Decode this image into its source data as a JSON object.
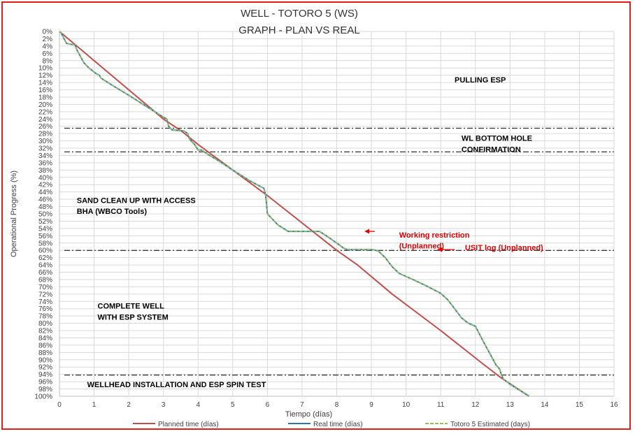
{
  "chart_data": {
    "type": "line",
    "title": "WELL -  TOTORO 5 (WS)",
    "subtitle": "GRAPH  - PLAN VS REAL",
    "xlabel": "Tiempo (días)",
    "ylabel": "Operational Progress (%)",
    "xlim": [
      0,
      16
    ],
    "ylim": [
      0,
      100
    ],
    "y_reversed": true,
    "x_ticks": [
      0,
      1,
      2,
      3,
      4,
      5,
      6,
      7,
      8,
      9,
      10,
      11,
      12,
      13,
      14,
      15,
      16
    ],
    "y_ticks": [
      0,
      2,
      4,
      6,
      8,
      10,
      12,
      14,
      16,
      18,
      20,
      22,
      24,
      26,
      28,
      30,
      32,
      34,
      36,
      38,
      40,
      42,
      44,
      46,
      48,
      50,
      52,
      54,
      56,
      58,
      60,
      62,
      64,
      66,
      68,
      70,
      72,
      74,
      76,
      78,
      80,
      82,
      84,
      86,
      88,
      90,
      92,
      94,
      96,
      98,
      100
    ],
    "y_tick_suffix": "%",
    "grid": true,
    "legend_position": "bottom",
    "series": [
      {
        "name": "Planned time (días)",
        "color": "#c0504d",
        "style": "solid",
        "x": [
          0,
          1.5,
          3.0,
          3.55,
          4.0,
          6.0,
          8.0,
          8.6,
          9.6,
          11.0,
          12.2,
          12.75,
          13.55
        ],
        "y": [
          0,
          12,
          24,
          27.5,
          31,
          45,
          60,
          64,
          72,
          82,
          91,
          95,
          100
        ]
      },
      {
        "name": "Real time (días)",
        "color": "#2e75b6",
        "style": "solid",
        "x": [
          0,
          0.05,
          0.2,
          0.25,
          0.45,
          0.5,
          0.7,
          0.85,
          1.05,
          1.15,
          1.2,
          1.4,
          1.6,
          2.0,
          2.5,
          3.0,
          3.1,
          3.15,
          3.25,
          3.5,
          3.6,
          3.7,
          3.75,
          3.9,
          4.0,
          4.1,
          4.3,
          4.6,
          5.0,
          5.5,
          5.9,
          5.95,
          6.0,
          6.3,
          6.55,
          6.6,
          7.5,
          7.7,
          8.0,
          8.2,
          8.3,
          9.05,
          9.2,
          9.4,
          9.6,
          9.8,
          10.2,
          10.6,
          11.0,
          11.2,
          11.4,
          11.6,
          11.8,
          12.0,
          12.2,
          12.4,
          12.6,
          12.7,
          12.75,
          12.8,
          13.0,
          13.3,
          13.55
        ],
        "y": [
          0,
          0.5,
          3.2,
          3.4,
          3.7,
          5,
          8.5,
          10,
          11.5,
          12,
          12.8,
          14,
          15.2,
          17.5,
          20.5,
          23.5,
          24,
          26,
          27,
          27.2,
          27.3,
          28,
          29.5,
          31,
          32.5,
          32.5,
          33.8,
          35.5,
          38,
          41,
          43,
          45,
          50,
          53,
          54.5,
          54.8,
          54.8,
          56,
          58,
          59.4,
          59.8,
          59.8,
          60.2,
          62,
          64.5,
          66.3,
          68,
          69.8,
          71.8,
          73.5,
          76,
          78.5,
          80,
          80.8,
          84.5,
          88,
          91.5,
          92.5,
          94,
          95.2,
          96.7,
          98.5,
          100
        ]
      },
      {
        "name": "Totoro 5 Estimated (days)",
        "color": "#9bbb59",
        "style": "dashed",
        "x": [
          0,
          0.05,
          0.2,
          0.25,
          0.45,
          0.5,
          0.7,
          0.85,
          1.05,
          1.15,
          1.2,
          1.4,
          1.6,
          2.0,
          2.5,
          3.0,
          3.1,
          3.15,
          3.25,
          3.5,
          3.6,
          3.7,
          3.75,
          3.9,
          4.0,
          4.1,
          4.3,
          4.6,
          5.0,
          5.5,
          5.9,
          5.95,
          6.0,
          6.3,
          6.55,
          6.6,
          7.5,
          7.7,
          8.0,
          8.2,
          8.3,
          9.05,
          9.2,
          9.4,
          9.6,
          9.8,
          10.2,
          10.6,
          11.0,
          11.2,
          11.4,
          11.6,
          11.8,
          12.0,
          12.2,
          12.4,
          12.6,
          12.7,
          12.75,
          12.8,
          13.0,
          13.3,
          13.55
        ],
        "y": [
          0,
          0.5,
          3.2,
          3.4,
          3.7,
          5,
          8.5,
          10,
          11.5,
          12,
          12.8,
          14,
          15.2,
          17.5,
          20.5,
          23.5,
          24,
          26,
          27,
          27.2,
          27.3,
          28,
          29.5,
          31,
          32.5,
          32.5,
          33.8,
          35.5,
          38,
          41,
          43,
          45,
          50,
          53,
          54.5,
          54.8,
          54.8,
          56,
          58,
          59.4,
          59.8,
          59.8,
          60.2,
          62,
          64.5,
          66.3,
          68,
          69.8,
          71.8,
          73.5,
          76,
          78.5,
          80,
          80.8,
          84.5,
          88,
          91.5,
          92.5,
          94,
          95.2,
          96.7,
          98.5,
          100
        ]
      }
    ],
    "reference_lines": [
      {
        "y": 26.5,
        "style": "dash-dot"
      },
      {
        "y": 33,
        "style": "dash-dot"
      },
      {
        "y": 60,
        "style": "dash-dot"
      },
      {
        "y": 94.2,
        "style": "dash-dot"
      }
    ],
    "annotations": [
      {
        "text": "PULLING ESP",
        "x": 11.4,
        "y": 14,
        "color": "#000000",
        "bold": true
      },
      {
        "text": "WL BOTTOM HOLE",
        "x": 11.6,
        "y": 30,
        "color": "#000000",
        "bold": true
      },
      {
        "text": "CONFIRMATION",
        "x": 11.6,
        "y": 33,
        "color": "#000000",
        "bold": true
      },
      {
        "text": "SAND CLEAN UP WITH ACCESS",
        "x": 0.5,
        "y": 47,
        "color": "#000000",
        "bold": true
      },
      {
        "text": "BHA (WBCO Tools)",
        "x": 0.5,
        "y": 50,
        "color": "#000000",
        "bold": true
      },
      {
        "text": "Working restriction",
        "x": 9.8,
        "y": 56.5,
        "color": "#e00000",
        "bold": true
      },
      {
        "text": "(Unplanned)",
        "x": 9.8,
        "y": 59.5,
        "color": "#e00000",
        "bold": true
      },
      {
        "text": "USIT log (Unplanned)",
        "x": 11.7,
        "y": 60,
        "color": "#e00000",
        "bold": true
      },
      {
        "text": "COMPLETE WELL",
        "x": 1.1,
        "y": 76,
        "color": "#000000",
        "bold": true
      },
      {
        "text": "WITH ESP SYSTEM",
        "x": 1.1,
        "y": 79,
        "color": "#000000",
        "bold": true
      },
      {
        "text": "WELLHEAD INSTALLATION AND ESP SPIN TEST",
        "x": 0.8,
        "y": 97.5,
        "color": "#000000",
        "bold": true
      }
    ],
    "arrows": [
      {
        "from": [
          9.1,
          54.8
        ],
        "to": [
          8.8,
          54.8
        ],
        "color": "#e00000"
      },
      {
        "from": [
          11.4,
          59.8
        ],
        "to": [
          10.9,
          59.8
        ],
        "color": "#e00000"
      }
    ]
  }
}
